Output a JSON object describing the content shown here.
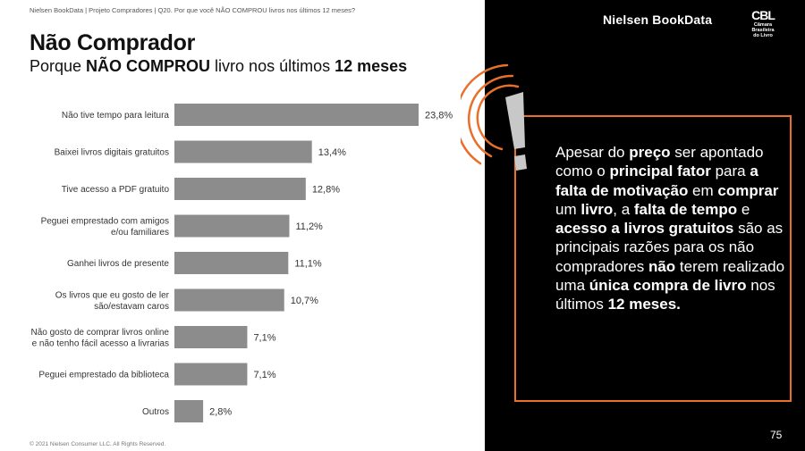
{
  "header": {
    "breadcrumb": "Nielsen BookData | Projeto Compradores | Q20. Por que você NÃO COMPROU livros nos últimos 12 meses?",
    "title": "Não Comprador",
    "subtitle_pre": "Porque ",
    "subtitle_bold1": "NÃO COMPROU",
    "subtitle_mid": " livro nos últimos ",
    "subtitle_bold2": "12 meses"
  },
  "chart_data": {
    "type": "bar",
    "orientation": "horizontal",
    "title": "Porque NÃO COMPROU livro nos últimos 12 meses",
    "categories": [
      [
        "Não tive tempo para leitura"
      ],
      [
        "Baixei livros digitais gratuitos"
      ],
      [
        "Tive acesso a PDF gratuito"
      ],
      [
        "Peguei emprestado com amigos",
        "e/ou familiares"
      ],
      [
        "Ganhei livros de presente"
      ],
      [
        "Os livros que eu gosto de ler",
        "são/estavam caros"
      ],
      [
        "Não gosto de comprar livros online",
        "e não tenho fácil acesso a livrarias"
      ],
      [
        "Peguei emprestado da biblioteca"
      ],
      [
        "Outros"
      ]
    ],
    "values": [
      23.8,
      13.4,
      12.8,
      11.2,
      11.1,
      10.7,
      7.1,
      7.1,
      2.8
    ],
    "value_labels": [
      "23,8%",
      "13,4%",
      "12,8%",
      "11,2%",
      "11,1%",
      "10,7%",
      "7,1%",
      "7,1%",
      "2,8%"
    ],
    "unit": "%",
    "xlim": [
      0,
      23.8
    ],
    "bar_color": "#8c8c8c",
    "grid": false
  },
  "footer": {
    "copyright": "© 2021 Nielsen Consumer LLC. All Rights Reserved."
  },
  "brand": {
    "name": "Nielsen BookData",
    "cbl_mark": "CBL",
    "cbl_line1": "Câmara",
    "cbl_line2": "Brasileira",
    "cbl_line3": "do Livro"
  },
  "callout": {
    "t1": "Apesar do ",
    "b1": "preço",
    "t2": " ser apontado como o ",
    "b2": "principal fator",
    "t3": " para ",
    "b3": "a falta de motivação",
    "t4": " em ",
    "b4": "comprar",
    "t5": " um ",
    "b5": "livro",
    "t6": ", a ",
    "b6": "falta de tempo",
    "t7": " e ",
    "b7": "acesso a livros gratuitos",
    "t8": " são as principais razões para os não compradores ",
    "b8": "não",
    "t9": " terem realizado uma ",
    "b9": "única compra de livro",
    "t10": " nos últimos ",
    "b10": "12 meses.",
    "accent_color": "#e8702a",
    "icon": "exclamation-icon"
  },
  "page": {
    "number": "75"
  }
}
